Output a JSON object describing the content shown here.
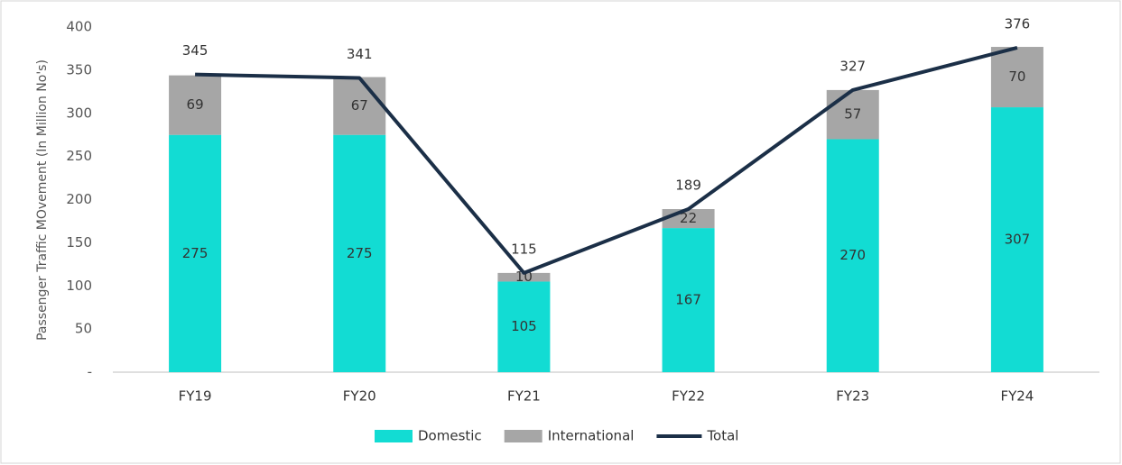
{
  "chart_data": {
    "type": "bar",
    "stacked": true,
    "y_axis_label": "Passenger Traffic MOvement  (In Million No's)",
    "categories": [
      "FY19",
      "FY20",
      "FY21",
      "FY22",
      "FY23",
      "FY24"
    ],
    "series": [
      {
        "name": "Domestic",
        "type": "bar",
        "color": "#12dcd3",
        "values": [
          275,
          275,
          105,
          167,
          270,
          307
        ]
      },
      {
        "name": "International",
        "type": "bar",
        "color": "#a6a6a6",
        "values": [
          69,
          67,
          10,
          22,
          57,
          70
        ]
      },
      {
        "name": "Total",
        "type": "line",
        "color": "#1b2f47",
        "values": [
          345,
          341,
          115,
          189,
          327,
          376
        ]
      }
    ],
    "ylim": [
      0,
      400
    ],
    "yticks": [
      {
        "value": 0,
        "label": "-"
      },
      50,
      100,
      150,
      200,
      250,
      300,
      350,
      400
    ],
    "grid": false,
    "legend": "bottom"
  }
}
